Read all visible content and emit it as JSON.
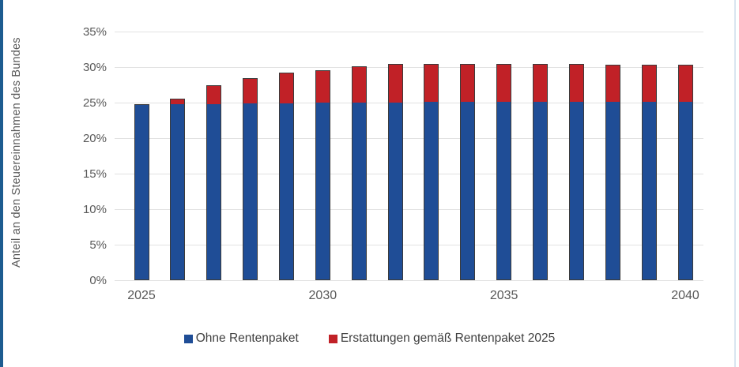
{
  "page": {
    "background": "#ffffff",
    "left_border_color": "#1d5c90",
    "right_edge_color": "#d9e5f0"
  },
  "chart_data": {
    "type": "bar",
    "stacked": true,
    "title": "",
    "xlabel": "",
    "ylabel": "Anteil an den Steuereinnahmen des Bundes",
    "ylim": [
      0,
      35
    ],
    "ytick_step": 5,
    "yticks": [
      "0%",
      "5%",
      "10%",
      "15%",
      "20%",
      "25%",
      "30%",
      "35%"
    ],
    "grid": true,
    "legend_position": "bottom",
    "categories": [
      2025,
      2026,
      2027,
      2028,
      2029,
      2030,
      2031,
      2032,
      2033,
      2034,
      2035,
      2036,
      2037,
      2038,
      2039,
      2040
    ],
    "xtick_labels": [
      "2025",
      "2030",
      "2035",
      "2040"
    ],
    "series": [
      {
        "name": "Ohne Rentenpaket",
        "color": "#1f4d96",
        "values": [
          24.8,
          24.9,
          24.9,
          25.0,
          25.0,
          25.1,
          25.1,
          25.1,
          25.2,
          25.2,
          25.2,
          25.2,
          25.2,
          25.2,
          25.2,
          25.2
        ]
      },
      {
        "name": "Erstattungen gemäß Rentenpaket 2025",
        "color": "#c12127",
        "values": [
          0.0,
          0.7,
          2.5,
          3.4,
          4.2,
          4.5,
          5.0,
          5.3,
          5.2,
          5.2,
          5.2,
          5.2,
          5.2,
          5.1,
          5.1,
          5.1
        ]
      }
    ],
    "bar_border_color": "#3b3b3b",
    "gridline_color": "#e2e2e2",
    "tick_text_color": "#595959",
    "legend_text_color": "#404040"
  }
}
